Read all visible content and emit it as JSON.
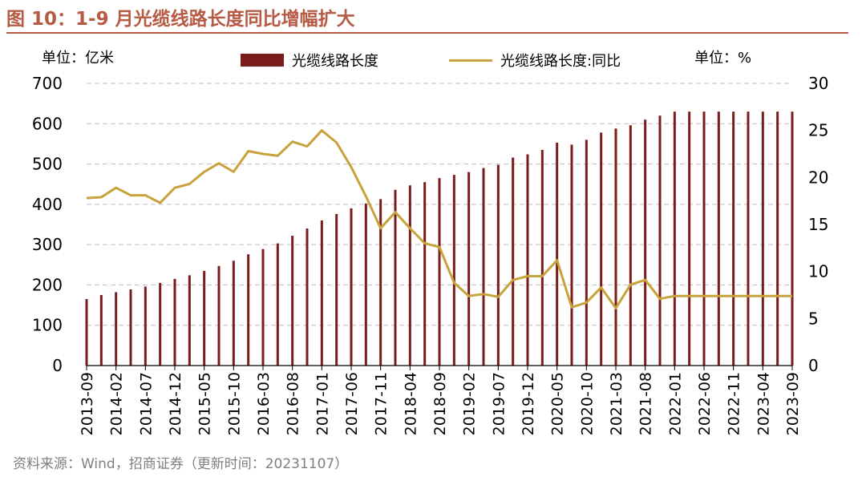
{
  "title": "图 10：1-9 月光缆线路长度同比增幅扩大",
  "source": "资料来源：Wind，招商证券（更新时间：20231107）",
  "unit_left": "单位：亿米",
  "unit_right": "单位：%",
  "colors": {
    "title": "#b65a44",
    "bar": "#7a1c1c",
    "line": "#c8a23a",
    "grid": "#bfbfbf"
  },
  "chart_data": {
    "type": "bar+line",
    "x": [
      "2013-09",
      "2013-12",
      "2014-02",
      "2014-04",
      "2014-07",
      "2014-09",
      "2014-12",
      "2015-02",
      "2015-05",
      "2015-07",
      "2015-10",
      "2015-12",
      "2016-03",
      "2016-05",
      "2016-08",
      "2016-10",
      "2017-01",
      "2017-03",
      "2017-06",
      "2017-08",
      "2017-11",
      "2018-01",
      "2018-04",
      "2018-06",
      "2018-09",
      "2018-11",
      "2019-02",
      "2019-04",
      "2019-07",
      "2019-09",
      "2019-12",
      "2020-02",
      "2020-05",
      "2020-07",
      "2020-10",
      "2020-12",
      "2021-03",
      "2021-05",
      "2021-08",
      "2021-10",
      "2022-01",
      "2022-03",
      "2022-06",
      "2022-08",
      "2022-11",
      "2023-01",
      "2023-04",
      "2023-06",
      "2023-09"
    ],
    "tick_labels": [
      "2013-09",
      "2014-02",
      "2014-07",
      "2014-12",
      "2015-05",
      "2015-10",
      "2016-03",
      "2016-08",
      "2017-01",
      "2017-06",
      "2017-11",
      "2018-04",
      "2018-09",
      "2019-02",
      "2019-07",
      "2019-12",
      "2020-05",
      "2020-10",
      "2021-03",
      "2021-08",
      "2022-01",
      "2022-06",
      "2022-11",
      "2023-04",
      "2023-09"
    ],
    "series": [
      {
        "name": "光缆线路长度",
        "type": "bar",
        "axis": "left",
        "values": [
          165,
          175,
          182,
          189,
          196,
          205,
          215,
          224,
          235,
          247,
          260,
          276,
          289,
          303,
          322,
          340,
          360,
          376,
          390,
          402,
          413,
          436,
          447,
          455,
          465,
          473,
          480,
          490,
          498,
          516,
          524,
          535,
          553,
          548,
          560,
          578,
          588,
          596,
          610,
          620,
          630,
          630,
          630,
          630,
          630,
          630,
          630,
          630,
          630
        ]
      },
      {
        "name": "光缆线路长度:同比",
        "type": "line",
        "axis": "right",
        "values": [
          17.8,
          17.9,
          18.9,
          18.1,
          18.1,
          17.3,
          18.9,
          19.3,
          20.6,
          21.5,
          20.6,
          22.8,
          22.5,
          22.3,
          23.8,
          23.3,
          25.0,
          23.7,
          21.1,
          18.0,
          14.6,
          16.3,
          14.6,
          13.0,
          12.6,
          8.8,
          7.4,
          7.6,
          7.3,
          9.1,
          9.5,
          9.5,
          11.2,
          6.2,
          6.7,
          8.3,
          6.1,
          8.6,
          9.1,
          7.1,
          7.4,
          7.4,
          7.4,
          7.4,
          7.4,
          7.4,
          7.4,
          7.4,
          7.4
        ]
      }
    ],
    "y_left": {
      "min": 0,
      "max": 700,
      "ticks": [
        0,
        100,
        200,
        300,
        400,
        500,
        600,
        700
      ]
    },
    "y_right": {
      "min": 0,
      "max": 30,
      "ticks": [
        0,
        5,
        10,
        15,
        20,
        25,
        30
      ]
    },
    "grid": true,
    "legend": "top"
  }
}
